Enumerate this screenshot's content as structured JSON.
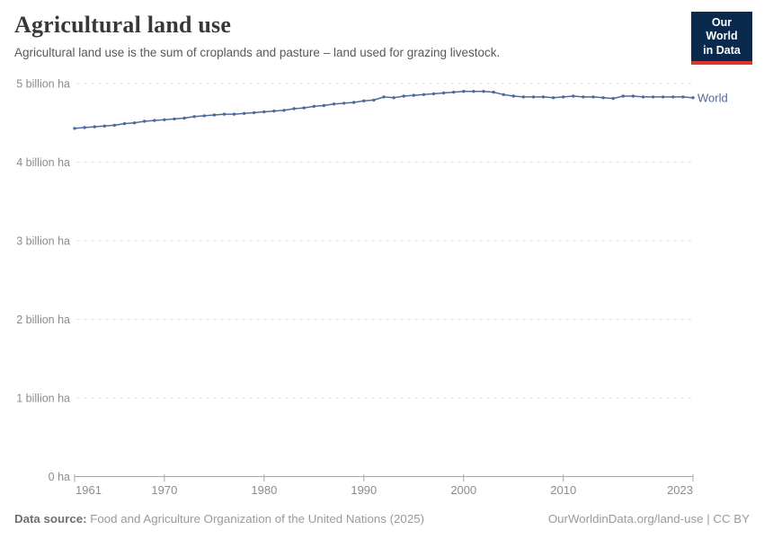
{
  "header": {
    "title": "Agricultural land use",
    "subtitle": "Agricultural land use is the sum of croplands and pasture – land used for grazing livestock.",
    "logo": {
      "line1": "Our World",
      "line2": "in Data"
    }
  },
  "footer": {
    "source_label": "Data source:",
    "source_text": " Food and Agriculture Organization of the United Nations (2025)",
    "link_text": "OurWorldinData.org/land-use | CC BY"
  },
  "colors": {
    "line": "#4C6A9C",
    "grid": "#e2e2e2",
    "axis": "#a8a8a8",
    "tick_label": "#8c8c8c",
    "logo_bg": "#0a2a4d",
    "logo_red": "#dc352b"
  },
  "chart_data": {
    "type": "line",
    "title": "Agricultural land use",
    "xlabel": "",
    "ylabel": "",
    "xlim": [
      1961,
      2023
    ],
    "ylim": [
      0,
      5
    ],
    "grid": true,
    "legend_position": "end-of-line",
    "xticks": [
      1961,
      1970,
      1980,
      1990,
      2000,
      2010,
      2023
    ],
    "yticks": [
      {
        "value": 5,
        "label": "5 billion ha"
      },
      {
        "value": 4,
        "label": "4 billion ha"
      },
      {
        "value": 3,
        "label": "3 billion ha"
      },
      {
        "value": 2,
        "label": "2 billion ha"
      },
      {
        "value": 1,
        "label": "1 billion ha"
      },
      {
        "value": 0,
        "label": "0 ha"
      }
    ],
    "unit": "billion ha",
    "x": [
      1961,
      1962,
      1963,
      1964,
      1965,
      1966,
      1967,
      1968,
      1969,
      1970,
      1971,
      1972,
      1973,
      1974,
      1975,
      1976,
      1977,
      1978,
      1979,
      1980,
      1981,
      1982,
      1983,
      1984,
      1985,
      1986,
      1987,
      1988,
      1989,
      1990,
      1991,
      1992,
      1993,
      1994,
      1995,
      1996,
      1997,
      1998,
      1999,
      2000,
      2001,
      2002,
      2003,
      2004,
      2005,
      2006,
      2007,
      2008,
      2009,
      2010,
      2011,
      2012,
      2013,
      2014,
      2015,
      2016,
      2017,
      2018,
      2019,
      2020,
      2021,
      2022,
      2023
    ],
    "series": [
      {
        "name": "World",
        "color": "#4C6A9C",
        "values": [
          4.43,
          4.44,
          4.45,
          4.46,
          4.47,
          4.49,
          4.5,
          4.52,
          4.53,
          4.54,
          4.55,
          4.56,
          4.58,
          4.59,
          4.6,
          4.61,
          4.61,
          4.62,
          4.63,
          4.64,
          4.65,
          4.66,
          4.68,
          4.69,
          4.71,
          4.72,
          4.74,
          4.75,
          4.76,
          4.78,
          4.79,
          4.83,
          4.82,
          4.84,
          4.85,
          4.86,
          4.87,
          4.88,
          4.89,
          4.9,
          4.9,
          4.9,
          4.89,
          4.86,
          4.84,
          4.83,
          4.83,
          4.83,
          4.82,
          4.83,
          4.84,
          4.83,
          4.83,
          4.82,
          4.81,
          4.84,
          4.84,
          4.83,
          4.83,
          4.83,
          4.83,
          4.83,
          4.82
        ]
      }
    ]
  }
}
